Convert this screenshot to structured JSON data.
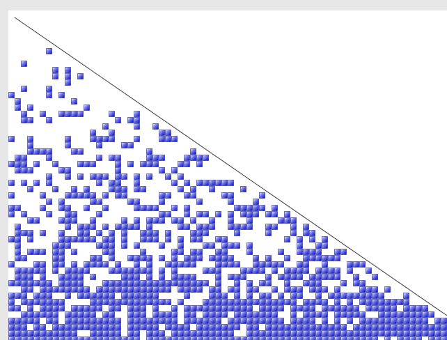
{
  "colors": {
    "background": "#e7e7e8",
    "canvas": "#ffffff",
    "cell_dark": "#0a12d6",
    "cell_light": "#f2f3ff",
    "cell_border": "#1a1f8a",
    "diagonal": "#3a3a3a"
  },
  "figure": {
    "description_visible": "",
    "pattern_density_increases_downward": true
  }
}
